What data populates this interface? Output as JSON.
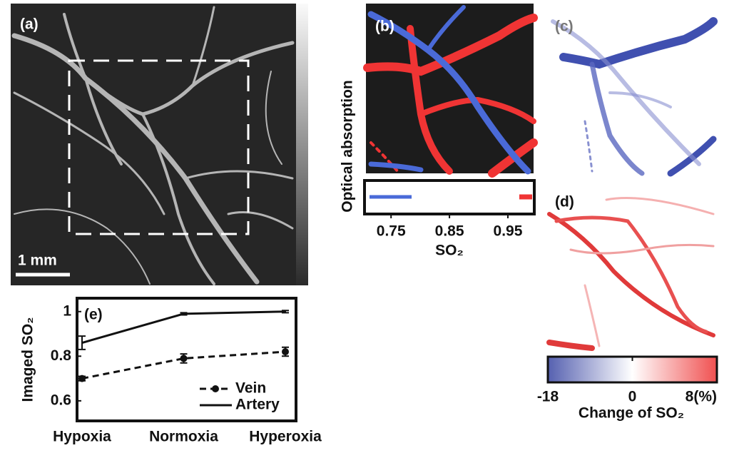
{
  "panels": {
    "a": {
      "label": "(a)",
      "scale_bar": "1 mm",
      "colorbar_label": "Optical absorption"
    },
    "b": {
      "label": "(b)",
      "so2_axis": {
        "label": "SO₂",
        "lim": [
          0.707,
          0.994
        ],
        "ticks": [
          0.75,
          0.85,
          0.95
        ]
      }
    },
    "c": {
      "label": "(c)"
    },
    "d": {
      "label": "(d)"
    },
    "change_colorbar": {
      "label": "Change of SO₂",
      "lim": [
        -18,
        8
      ],
      "ticks": [
        -18,
        0,
        {
          "value": 8,
          "label": "8(%)"
        }
      ]
    }
  },
  "chart_data": {
    "type": "line",
    "label": "(e)",
    "y_label": "Imaged SO₂",
    "categories": [
      "Hypoxia",
      "Normoxia",
      "Hyperoxia"
    ],
    "series": [
      {
        "name": "Vein",
        "color": "#111111",
        "linestyle": "dashed",
        "marker": true,
        "values": [
          0.7,
          0.79,
          0.82
        ],
        "errors": [
          0.01,
          0.02,
          0.02
        ]
      },
      {
        "name": "Artery",
        "color": "#111111",
        "linestyle": "solid",
        "marker": false,
        "values": [
          0.86,
          0.99,
          1.0
        ],
        "errors": [
          0.03,
          0.005,
          0.005
        ]
      }
    ],
    "ylim": [
      0.51,
      1.06
    ],
    "yticks": [
      0.6,
      0.8,
      1
    ]
  }
}
